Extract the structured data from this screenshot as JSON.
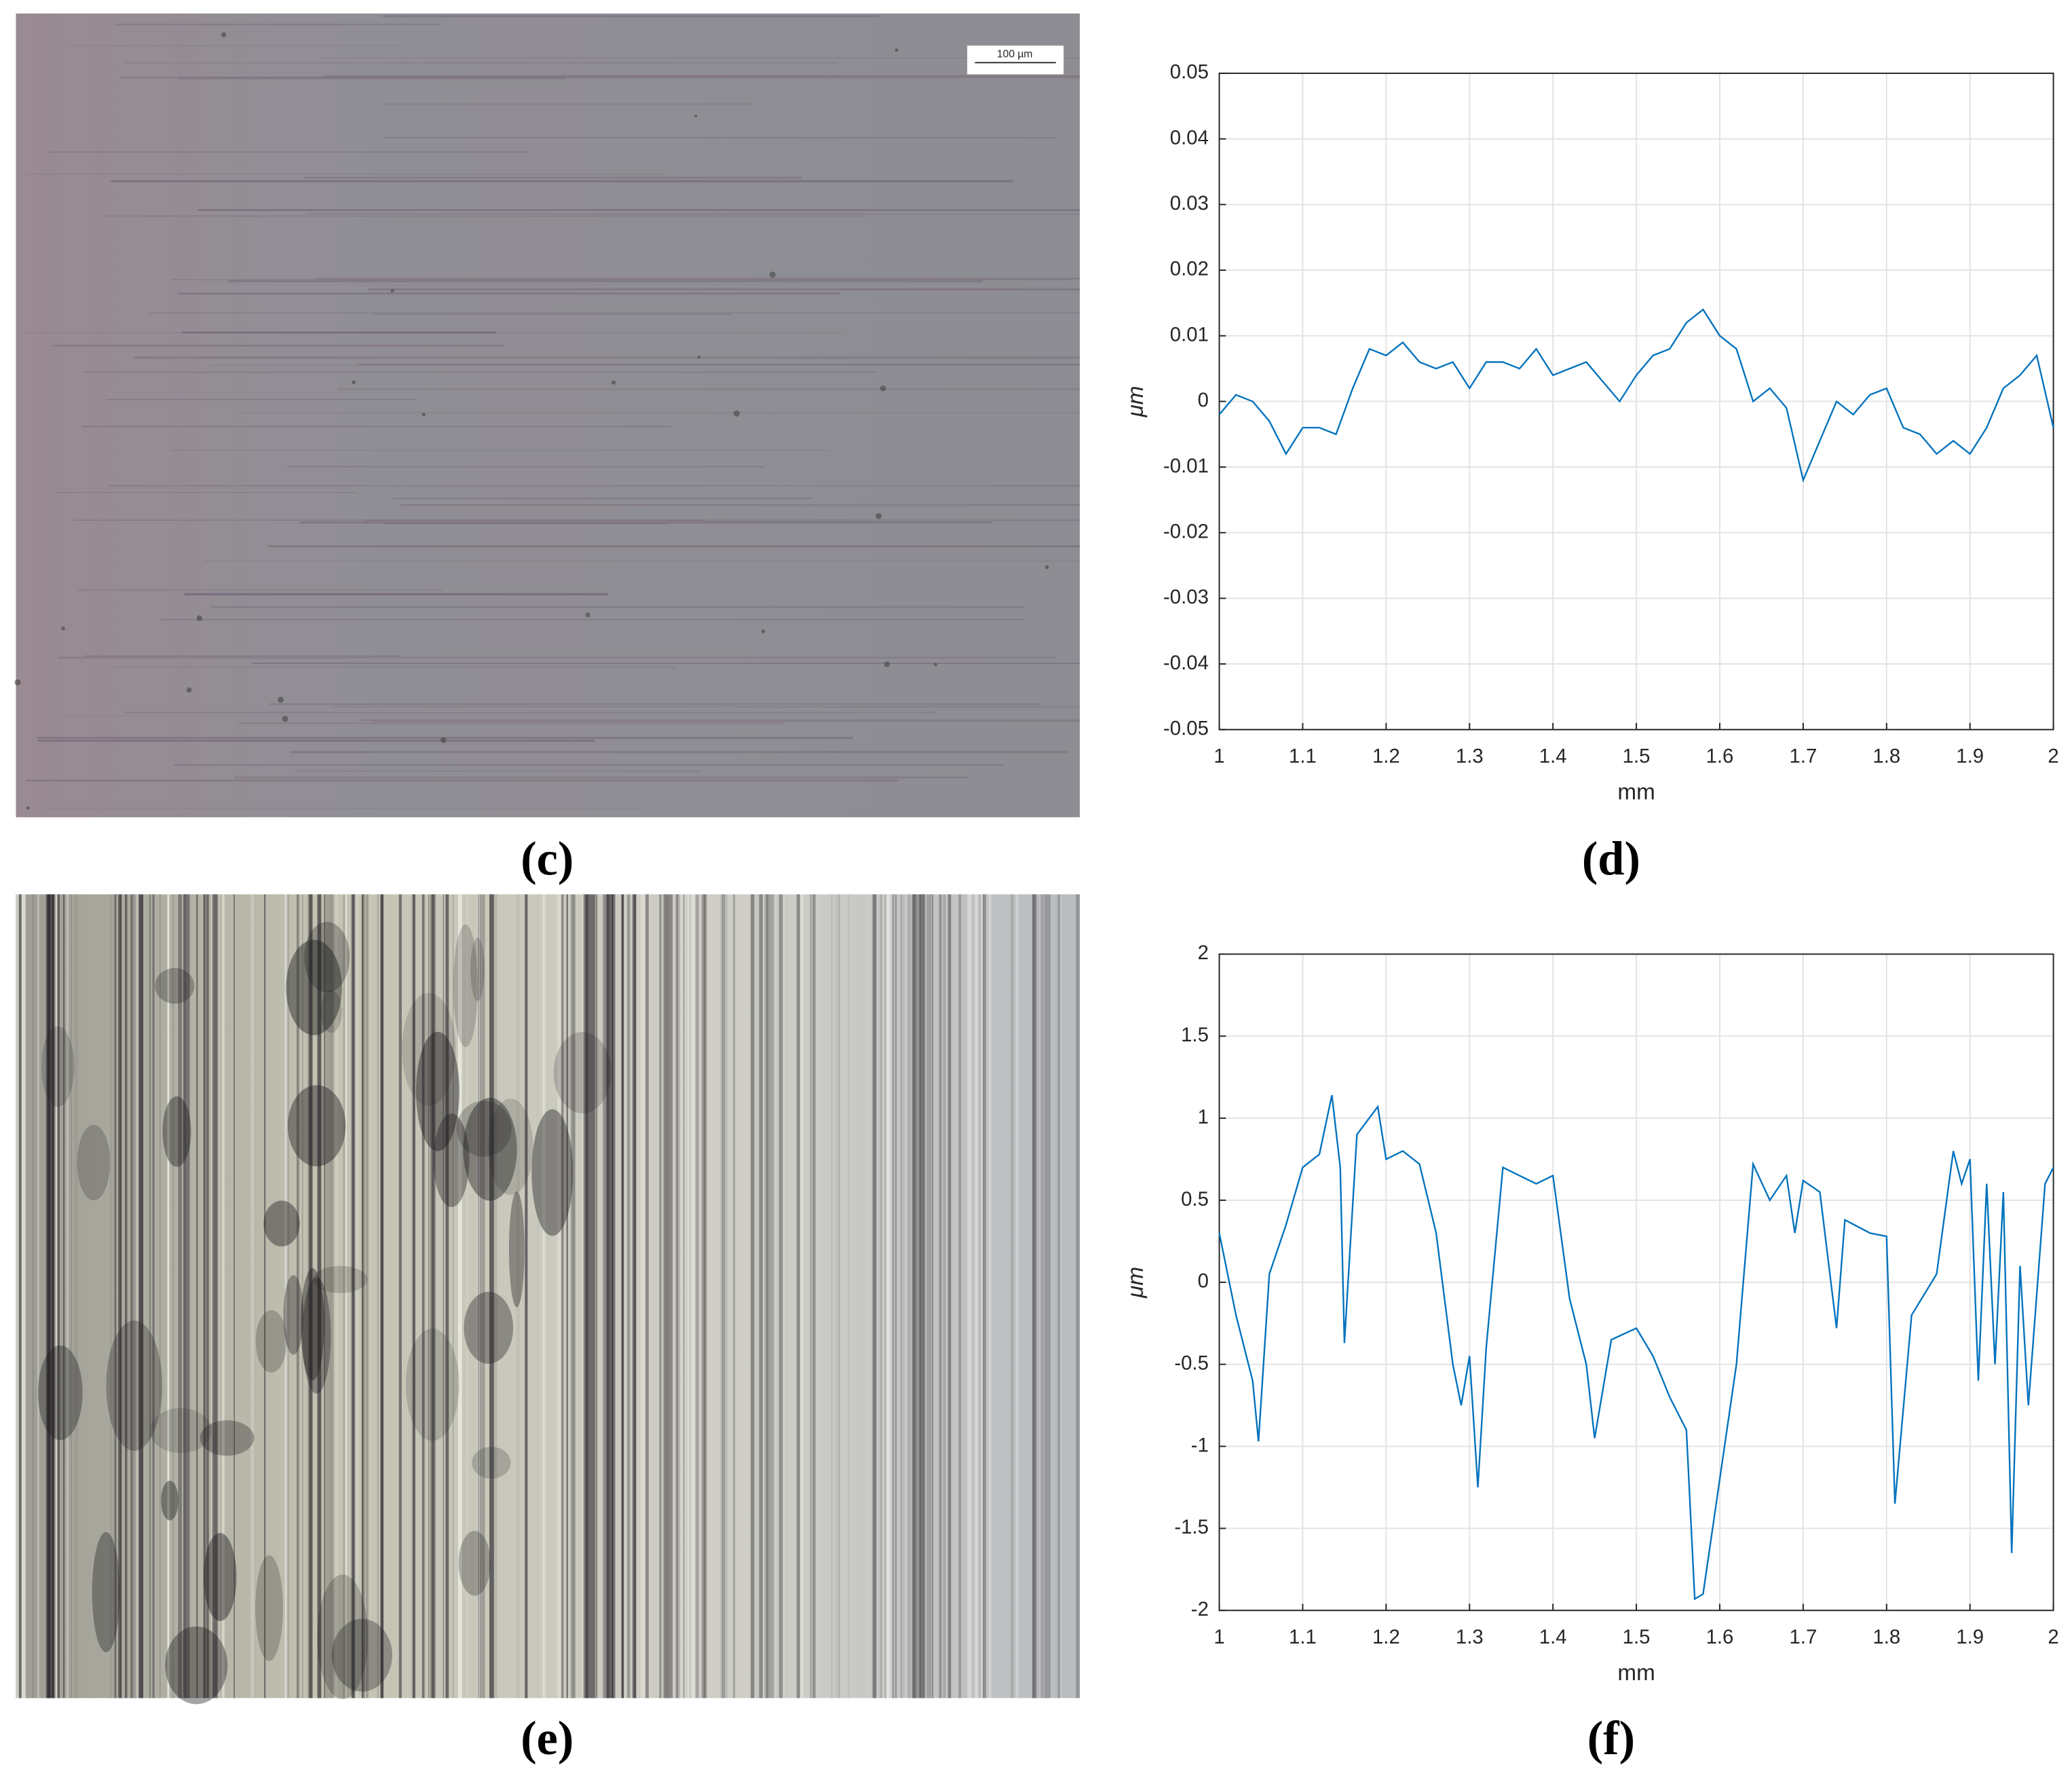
{
  "scale_bar": "100 µm",
  "panel_labels": [
    "(c)",
    "(d)",
    "(e)",
    "(f)"
  ],
  "chart_data": [
    {
      "type": "line",
      "xlabel": "mm",
      "ylabel": "μm",
      "color": "#0072bd",
      "grid": true,
      "xlim": [
        1,
        2
      ],
      "xticks": [
        1,
        1.1,
        1.2,
        1.3,
        1.4,
        1.5,
        1.6,
        1.7,
        1.8,
        1.9,
        2
      ],
      "ylim": [
        -0.05,
        0.05
      ],
      "yticks": [
        -0.05,
        -0.04,
        -0.03,
        -0.02,
        -0.01,
        0,
        0.01,
        0.02,
        0.03,
        0.04,
        0.05
      ],
      "x": [
        1.0,
        1.02,
        1.04,
        1.06,
        1.08,
        1.1,
        1.12,
        1.14,
        1.16,
        1.18,
        1.2,
        1.22,
        1.24,
        1.26,
        1.28,
        1.3,
        1.32,
        1.34,
        1.36,
        1.38,
        1.4,
        1.42,
        1.44,
        1.46,
        1.48,
        1.5,
        1.52,
        1.54,
        1.56,
        1.58,
        1.6,
        1.62,
        1.64,
        1.66,
        1.68,
        1.7,
        1.72,
        1.74,
        1.76,
        1.78,
        1.8,
        1.82,
        1.84,
        1.86,
        1.88,
        1.9,
        1.92,
        1.94,
        1.96,
        1.98,
        2.0
      ],
      "values": [
        -0.002,
        0.001,
        0.0,
        -0.003,
        -0.008,
        -0.004,
        -0.004,
        -0.005,
        0.002,
        0.008,
        0.007,
        0.009,
        0.006,
        0.005,
        0.006,
        0.002,
        0.006,
        0.006,
        0.005,
        0.008,
        0.004,
        0.005,
        0.006,
        0.003,
        0.0,
        0.004,
        0.007,
        0.008,
        0.012,
        0.014,
        0.01,
        0.008,
        0.0,
        0.002,
        -0.001,
        -0.012,
        -0.006,
        0.0,
        -0.002,
        0.001,
        0.002,
        -0.004,
        -0.005,
        -0.008,
        -0.006,
        -0.008,
        -0.004,
        0.002,
        0.004,
        0.007,
        -0.004
      ]
    },
    {
      "type": "line",
      "xlabel": "mm",
      "ylabel": "μm",
      "color": "#0072bd",
      "grid": true,
      "xlim": [
        1,
        2
      ],
      "xticks": [
        1,
        1.1,
        1.2,
        1.3,
        1.4,
        1.5,
        1.6,
        1.7,
        1.8,
        1.9,
        2
      ],
      "ylim": [
        -2,
        2
      ],
      "yticks": [
        -2,
        -1.5,
        -1,
        -0.5,
        0,
        0.5,
        1,
        1.5,
        2
      ],
      "x": [
        1.0,
        1.02,
        1.04,
        1.047,
        1.06,
        1.08,
        1.1,
        1.12,
        1.135,
        1.145,
        1.15,
        1.165,
        1.19,
        1.2,
        1.22,
        1.24,
        1.26,
        1.28,
        1.29,
        1.3,
        1.31,
        1.32,
        1.34,
        1.36,
        1.38,
        1.4,
        1.42,
        1.44,
        1.45,
        1.47,
        1.5,
        1.52,
        1.54,
        1.56,
        1.57,
        1.58,
        1.6,
        1.62,
        1.64,
        1.66,
        1.68,
        1.69,
        1.7,
        1.72,
        1.74,
        1.75,
        1.78,
        1.8,
        1.81,
        1.83,
        1.86,
        1.88,
        1.89,
        1.9,
        1.91,
        1.92,
        1.93,
        1.94,
        1.95,
        1.96,
        1.97,
        1.99,
        2.0
      ],
      "values": [
        0.3,
        -0.2,
        -0.6,
        -0.97,
        0.05,
        0.35,
        0.7,
        0.78,
        1.14,
        0.7,
        -0.37,
        0.9,
        1.07,
        0.75,
        0.8,
        0.72,
        0.3,
        -0.5,
        -0.75,
        -0.45,
        -1.25,
        -0.4,
        0.7,
        0.65,
        0.6,
        0.65,
        -0.1,
        -0.5,
        -0.95,
        -0.35,
        -0.28,
        -0.45,
        -0.7,
        -0.9,
        -1.93,
        -1.9,
        -1.2,
        -0.5,
        0.72,
        0.5,
        0.65,
        0.3,
        0.62,
        0.55,
        -0.28,
        0.38,
        0.3,
        0.28,
        -1.35,
        -0.2,
        0.05,
        0.8,
        0.6,
        0.75,
        -0.6,
        0.6,
        -0.5,
        0.55,
        -1.65,
        0.1,
        -0.75,
        0.6,
        0.7
      ]
    }
  ]
}
